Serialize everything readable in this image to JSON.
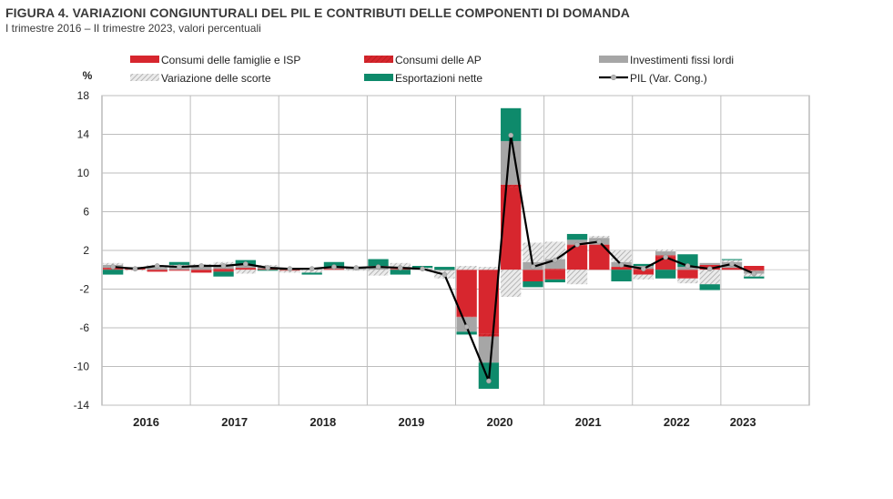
{
  "chart_data": {
    "type": "bar",
    "title": "FIGURA 4. VARIAZIONI CONGIUNTURALI DEL PIL E CONTRIBUTI DELLE COMPONENTI DI DOMANDA",
    "subtitle": "I trimestre 2016 – II trimestre 2023, valori percentuali",
    "ylabel": "%",
    "ylim": [
      -14,
      18
    ],
    "yticks": [
      "18",
      "14",
      "10",
      "6",
      "2",
      "-2",
      "-6",
      "-10",
      "-14"
    ],
    "ytick_values": [
      18,
      14,
      10,
      6,
      2,
      -2,
      -6,
      -10,
      -14
    ],
    "grid": true,
    "legend_position": "top",
    "years": [
      "2016",
      "2017",
      "2018",
      "2019",
      "2020",
      "2021",
      "2022",
      "2023"
    ],
    "quarters_per_year": [
      4,
      4,
      4,
      4,
      4,
      4,
      4,
      2
    ],
    "series": [
      {
        "name": "Consumi delle famiglie e ISP",
        "kind": "bar",
        "color": "#d7262e",
        "pattern": "solid",
        "values": [
          0.1,
          0.2,
          -0.2,
          -0.1,
          -0.3,
          -0.2,
          0.2,
          0.1,
          -0.1,
          0.0,
          0.1,
          0.0,
          0.0,
          0.1,
          0.0,
          0.0,
          -4.8,
          -6.6,
          8.5,
          -1.2,
          -1.0,
          2.5,
          2.6,
          0.3,
          -0.5,
          1.4,
          -0.9,
          0.5,
          0.2,
          0.4
        ]
      },
      {
        "name": "Consumi delle AP",
        "kind": "bar",
        "color": "#d7262e",
        "pattern": "hatch",
        "values": [
          0.1,
          0.0,
          0.0,
          0.0,
          0.0,
          0.1,
          0.0,
          0.0,
          0.0,
          0.0,
          0.0,
          0.0,
          0.0,
          0.0,
          0.0,
          0.0,
          -0.1,
          -0.3,
          0.3,
          0.0,
          0.1,
          0.1,
          0.0,
          0.0,
          0.1,
          0.1,
          0.0,
          0.0,
          0.0,
          -0.1
        ]
      },
      {
        "name": "Investimenti fissi lordi",
        "kind": "bar",
        "color": "#a6a6a6",
        "pattern": "solid",
        "values": [
          0.3,
          0.1,
          0.2,
          0.4,
          0.4,
          0.3,
          0.3,
          0.2,
          0.0,
          0.1,
          0.1,
          0.3,
          0.4,
          0.2,
          0.1,
          -0.1,
          -1.5,
          -2.7,
          4.5,
          0.8,
          1.0,
          0.5,
          0.7,
          0.5,
          0.3,
          0.4,
          0.3,
          0.2,
          0.6,
          -0.3
        ]
      },
      {
        "name": "Variazione delle scorte",
        "kind": "bar",
        "color": "#c8c8c8",
        "pattern": "dotted-hatch",
        "values": [
          0.2,
          -0.1,
          0.3,
          0.1,
          0.2,
          0.4,
          -0.4,
          0.2,
          -0.2,
          -0.3,
          0.1,
          -0.1,
          -0.6,
          0.4,
          0.1,
          -0.8,
          0.4,
          0.3,
          -2.8,
          2.0,
          1.8,
          -1.5,
          0.2,
          1.2,
          -0.5,
          0.2,
          -0.5,
          -1.5,
          0.2,
          -0.3
        ]
      },
      {
        "name": "Esportazioni nette",
        "kind": "bar",
        "color": "#0e8a6b",
        "pattern": "solid",
        "values": [
          -0.5,
          0.0,
          0.0,
          0.3,
          0.0,
          -0.5,
          0.5,
          -0.1,
          0.1,
          -0.2,
          0.5,
          0.0,
          0.7,
          -0.5,
          0.2,
          0.3,
          -0.3,
          -2.7,
          3.4,
          -0.6,
          -0.3,
          0.6,
          0.0,
          -1.2,
          0.2,
          -0.9,
          1.3,
          -0.6,
          0.1,
          -0.2
        ]
      },
      {
        "name": "PIL (Var. Cong.)",
        "kind": "line",
        "color": "#000000",
        "values": [
          0.3,
          0.1,
          0.4,
          0.3,
          0.4,
          0.4,
          0.6,
          0.2,
          0.1,
          0.1,
          0.3,
          0.2,
          0.3,
          0.2,
          0.1,
          -0.5,
          -5.9,
          -11.5,
          13.9,
          0.3,
          1.0,
          2.6,
          2.9,
          0.5,
          0.1,
          1.3,
          0.4,
          0.1,
          0.6,
          -0.4
        ]
      }
    ]
  }
}
